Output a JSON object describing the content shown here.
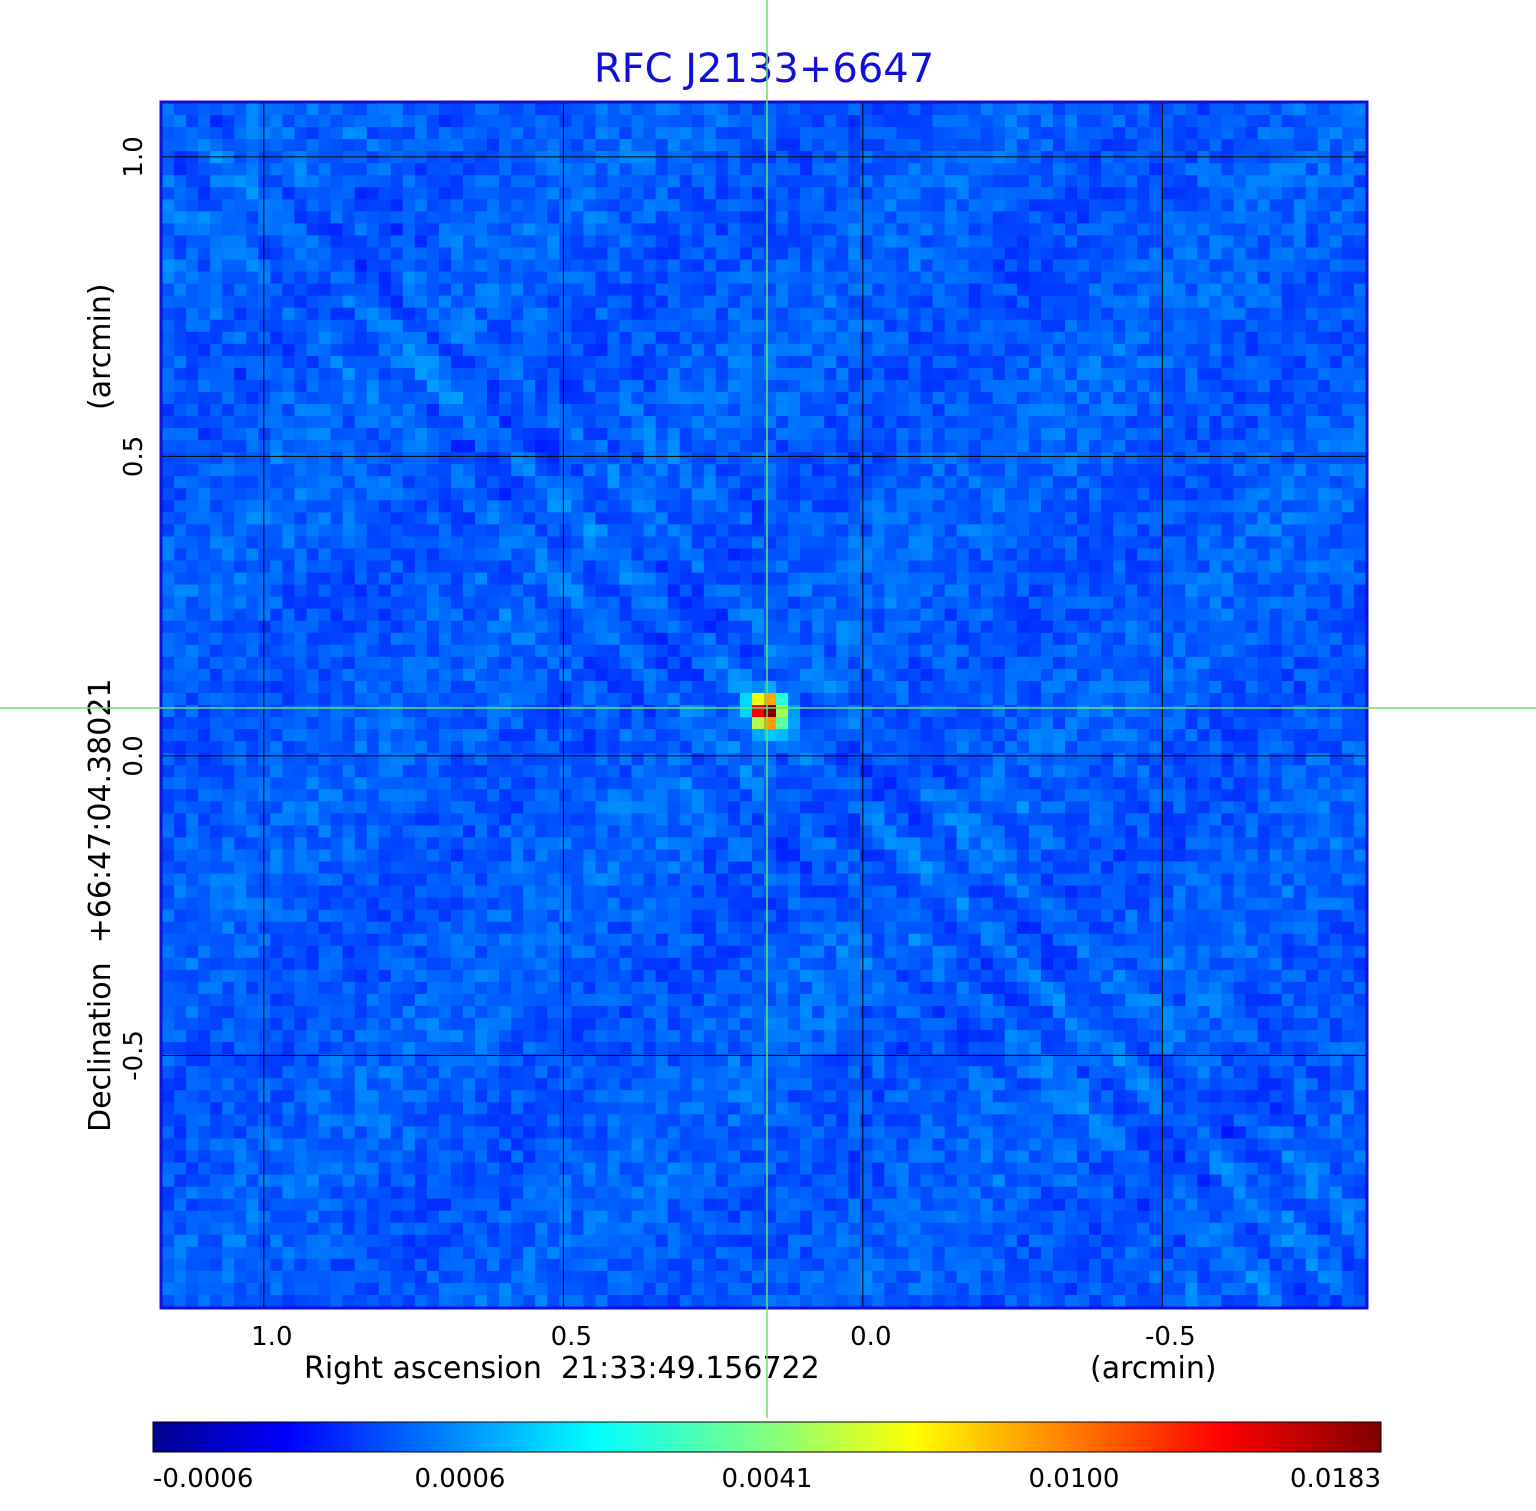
{
  "chart_data": {
    "type": "heatmap",
    "title": "RFC J2133+6647",
    "xlabel": "Right ascension  21:33:49.156722",
    "xunit": "(arcmin)",
    "ylabel": "Declination  +66:47:04.38021",
    "yunit": "(arcmin)",
    "x_ticks": [
      "1.0",
      "0.5",
      "0.0",
      "-0.5"
    ],
    "y_ticks": [
      "1.0",
      "0.5",
      "0.0",
      "-0.5"
    ],
    "xlim": [
      1.17,
      -0.84
    ],
    "ylim": [
      -0.92,
      1.09
    ],
    "grid": true,
    "colormap": "jet",
    "colorbar": {
      "orientation": "horizontal",
      "placement": "bottom",
      "tick_labels": [
        "-0.0006",
        "0.0006",
        "0.0041",
        "0.0100",
        "0.0183"
      ]
    },
    "source": {
      "ra_offset_arcmin": 0.16,
      "dec_offset_arcmin": 0.075,
      "peak": 0.0183
    },
    "colors": {
      "title": "#1010d8",
      "frame": "#1010d8",
      "crosshair": "#6ee06e",
      "grid": "#000000"
    }
  }
}
